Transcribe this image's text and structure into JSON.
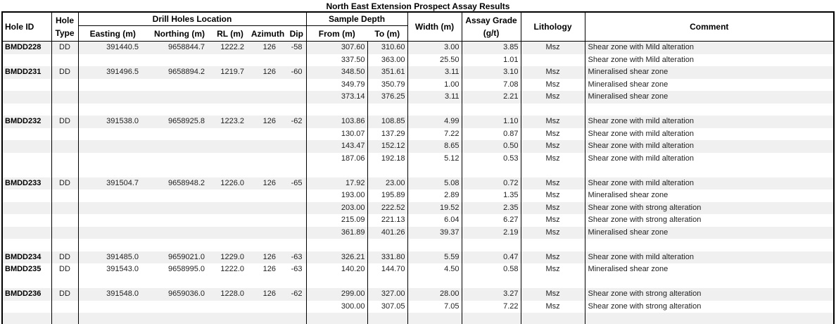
{
  "title": "North East Extension Prospect Assay Results",
  "colors": {
    "stripe": "#f0f0f0",
    "border": "#000000",
    "header_text": "#000000",
    "data_text": "#1f1f1f"
  },
  "headers": {
    "hole_id": "Hole ID",
    "hole_type": "Hole Type",
    "location_group": "Drill Holes Location",
    "easting": "Easting (m)",
    "northing": "Northing (m)",
    "rl": "RL (m)",
    "azimuth": "Azimuth",
    "dip": "Dip",
    "sample_depth_group": "Sample Depth",
    "from": "From (m)",
    "to": "To (m)",
    "width": "Width (m)",
    "assay": "Assay Grade (g/t)",
    "lithology": "Lithology",
    "comment": "Comment"
  },
  "rows": [
    {
      "hole_id": "BMDD228",
      "hole_type": "DD",
      "easting": "391440.5",
      "northing": "9658844.7",
      "rl": "1222.2",
      "azimuth": "126",
      "dip": "-58",
      "from": "307.60",
      "to": "310.60",
      "width": "3.00",
      "assay": "3.85",
      "lithology": "Msz",
      "comment": "Shear zone with Mild alteration",
      "shaded": true
    },
    {
      "hole_id": "",
      "hole_type": "",
      "easting": "",
      "northing": "",
      "rl": "",
      "azimuth": "",
      "dip": "",
      "from": "337.50",
      "to": "363.00",
      "width": "25.50",
      "assay": "1.01",
      "lithology": "",
      "comment": "Shear zone with Mild alteration",
      "shaded": false
    },
    {
      "hole_id": "BMDD231",
      "hole_type": "DD",
      "easting": "391496.5",
      "northing": "9658894.2",
      "rl": "1219.7",
      "azimuth": "126",
      "dip": "-60",
      "from": "348.50",
      "to": "351.61",
      "width": "3.11",
      "assay": "3.10",
      "lithology": "Msz",
      "comment": "Mineralised shear zone",
      "shaded": true
    },
    {
      "hole_id": "",
      "hole_type": "",
      "easting": "",
      "northing": "",
      "rl": "",
      "azimuth": "",
      "dip": "",
      "from": "349.79",
      "to": "350.79",
      "width": "1.00",
      "assay": "7.08",
      "lithology": "Msz",
      "comment": "Mineralised shear zone",
      "shaded": false
    },
    {
      "hole_id": "",
      "hole_type": "",
      "easting": "",
      "northing": "",
      "rl": "",
      "azimuth": "",
      "dip": "",
      "from": "373.14",
      "to": "376.25",
      "width": "3.11",
      "assay": "2.21",
      "lithology": "Msz",
      "comment": "Mineralised shear zone",
      "shaded": true
    },
    {
      "hole_id": "",
      "hole_type": "",
      "easting": "",
      "northing": "",
      "rl": "",
      "azimuth": "",
      "dip": "",
      "from": "",
      "to": "",
      "width": "",
      "assay": "",
      "lithology": "",
      "comment": "",
      "shaded": false
    },
    {
      "hole_id": "BMDD232",
      "hole_type": "DD",
      "easting": "391538.0",
      "northing": "9658925.8",
      "rl": "1223.2",
      "azimuth": "126",
      "dip": "-62",
      "from": "103.86",
      "to": "108.85",
      "width": "4.99",
      "assay": "1.10",
      "lithology": "Msz",
      "comment": "Shear zone with mild alteration",
      "shaded": true
    },
    {
      "hole_id": "",
      "hole_type": "",
      "easting": "",
      "northing": "",
      "rl": "",
      "azimuth": "",
      "dip": "",
      "from": "130.07",
      "to": "137.29",
      "width": "7.22",
      "assay": "0.87",
      "lithology": "Msz",
      "comment": "Shear zone with mild alteration",
      "shaded": false
    },
    {
      "hole_id": "",
      "hole_type": "",
      "easting": "",
      "northing": "",
      "rl": "",
      "azimuth": "",
      "dip": "",
      "from": "143.47",
      "to": "152.12",
      "width": "8.65",
      "assay": "0.50",
      "lithology": "Msz",
      "comment": "Shear zone with mild alteration",
      "shaded": true
    },
    {
      "hole_id": "",
      "hole_type": "",
      "easting": "",
      "northing": "",
      "rl": "",
      "azimuth": "",
      "dip": "",
      "from": "187.06",
      "to": "192.18",
      "width": "5.12",
      "assay": "0.53",
      "lithology": "Msz",
      "comment": "Shear zone with mild alteration",
      "shaded": false
    },
    {
      "hole_id": "",
      "hole_type": "",
      "easting": "",
      "northing": "",
      "rl": "",
      "azimuth": "",
      "dip": "",
      "from": "",
      "to": "",
      "width": "",
      "assay": "",
      "lithology": "",
      "comment": "",
      "shaded": false
    },
    {
      "hole_id": "BMDD233",
      "hole_type": "DD",
      "easting": "391504.7",
      "northing": "9658948.2",
      "rl": "1226.0",
      "azimuth": "126",
      "dip": "-65",
      "from": "17.92",
      "to": "23.00",
      "width": "5.08",
      "assay": "0.72",
      "lithology": "Msz",
      "comment": "Shear zone with mild alteration",
      "shaded": true
    },
    {
      "hole_id": "",
      "hole_type": "",
      "easting": "",
      "northing": "",
      "rl": "",
      "azimuth": "",
      "dip": "",
      "from": "193.00",
      "to": "195.89",
      "width": "2.89",
      "assay": "1.35",
      "lithology": "Msz",
      "comment": "Mineralised shear zone",
      "shaded": false
    },
    {
      "hole_id": "",
      "hole_type": "",
      "easting": "",
      "northing": "",
      "rl": "",
      "azimuth": "",
      "dip": "",
      "from": "203.00",
      "to": "222.52",
      "width": "19.52",
      "assay": "2.35",
      "lithology": "Msz",
      "comment": "Shear zone with strong alteration",
      "shaded": true
    },
    {
      "hole_id": "",
      "hole_type": "",
      "easting": "",
      "northing": "",
      "rl": "",
      "azimuth": "",
      "dip": "",
      "from": "215.09",
      "to": "221.13",
      "width": "6.04",
      "assay": "6.27",
      "lithology": "Msz",
      "comment": "Shear zone with strong alteration",
      "shaded": false
    },
    {
      "hole_id": "",
      "hole_type": "",
      "easting": "",
      "northing": "",
      "rl": "",
      "azimuth": "",
      "dip": "",
      "from": "361.89",
      "to": "401.26",
      "width": "39.37",
      "assay": "2.19",
      "lithology": "Msz",
      "comment": "Mineralised shear zone",
      "shaded": true
    },
    {
      "hole_id": "",
      "hole_type": "",
      "easting": "",
      "northing": "",
      "rl": "",
      "azimuth": "",
      "dip": "",
      "from": "",
      "to": "",
      "width": "",
      "assay": "",
      "lithology": "",
      "comment": "",
      "shaded": false
    },
    {
      "hole_id": "BMDD234",
      "hole_type": "DD",
      "easting": "391485.0",
      "northing": "9659021.0",
      "rl": "1229.0",
      "azimuth": "126",
      "dip": "-63",
      "from": "326.21",
      "to": "331.80",
      "width": "5.59",
      "assay": "0.47",
      "lithology": "Msz",
      "comment": "Shear zone with mild alteration",
      "shaded": true
    },
    {
      "hole_id": "BMDD235",
      "hole_type": "DD",
      "easting": "391543.0",
      "northing": "9658995.0",
      "rl": "1222.0",
      "azimuth": "126",
      "dip": "-63",
      "from": "140.20",
      "to": "144.70",
      "width": "4.50",
      "assay": "0.58",
      "lithology": "Msz",
      "comment": "Mineralised shear zone",
      "shaded": false
    },
    {
      "hole_id": "",
      "hole_type": "",
      "easting": "",
      "northing": "",
      "rl": "",
      "azimuth": "",
      "dip": "",
      "from": "",
      "to": "",
      "width": "",
      "assay": "",
      "lithology": "",
      "comment": "",
      "shaded": false
    },
    {
      "hole_id": "BMDD236",
      "hole_type": "DD",
      "easting": "391548.0",
      "northing": "9659036.0",
      "rl": "1228.0",
      "azimuth": "126",
      "dip": "-62",
      "from": "299.00",
      "to": "327.00",
      "width": "28.00",
      "assay": "3.27",
      "lithology": "Msz",
      "comment": "Shear zone with strong alteration",
      "shaded": true
    },
    {
      "hole_id": "",
      "hole_type": "",
      "easting": "",
      "northing": "",
      "rl": "",
      "azimuth": "",
      "dip": "",
      "from": "300.00",
      "to": "307.05",
      "width": "7.05",
      "assay": "7.22",
      "lithology": "Msz",
      "comment": "Shear zone with strong alteration",
      "shaded": false
    },
    {
      "hole_id": "",
      "hole_type": "",
      "easting": "",
      "northing": "",
      "rl": "",
      "azimuth": "",
      "dip": "",
      "from": "",
      "to": "",
      "width": "",
      "assay": "",
      "lithology": "",
      "comment": "",
      "shaded": true
    }
  ]
}
